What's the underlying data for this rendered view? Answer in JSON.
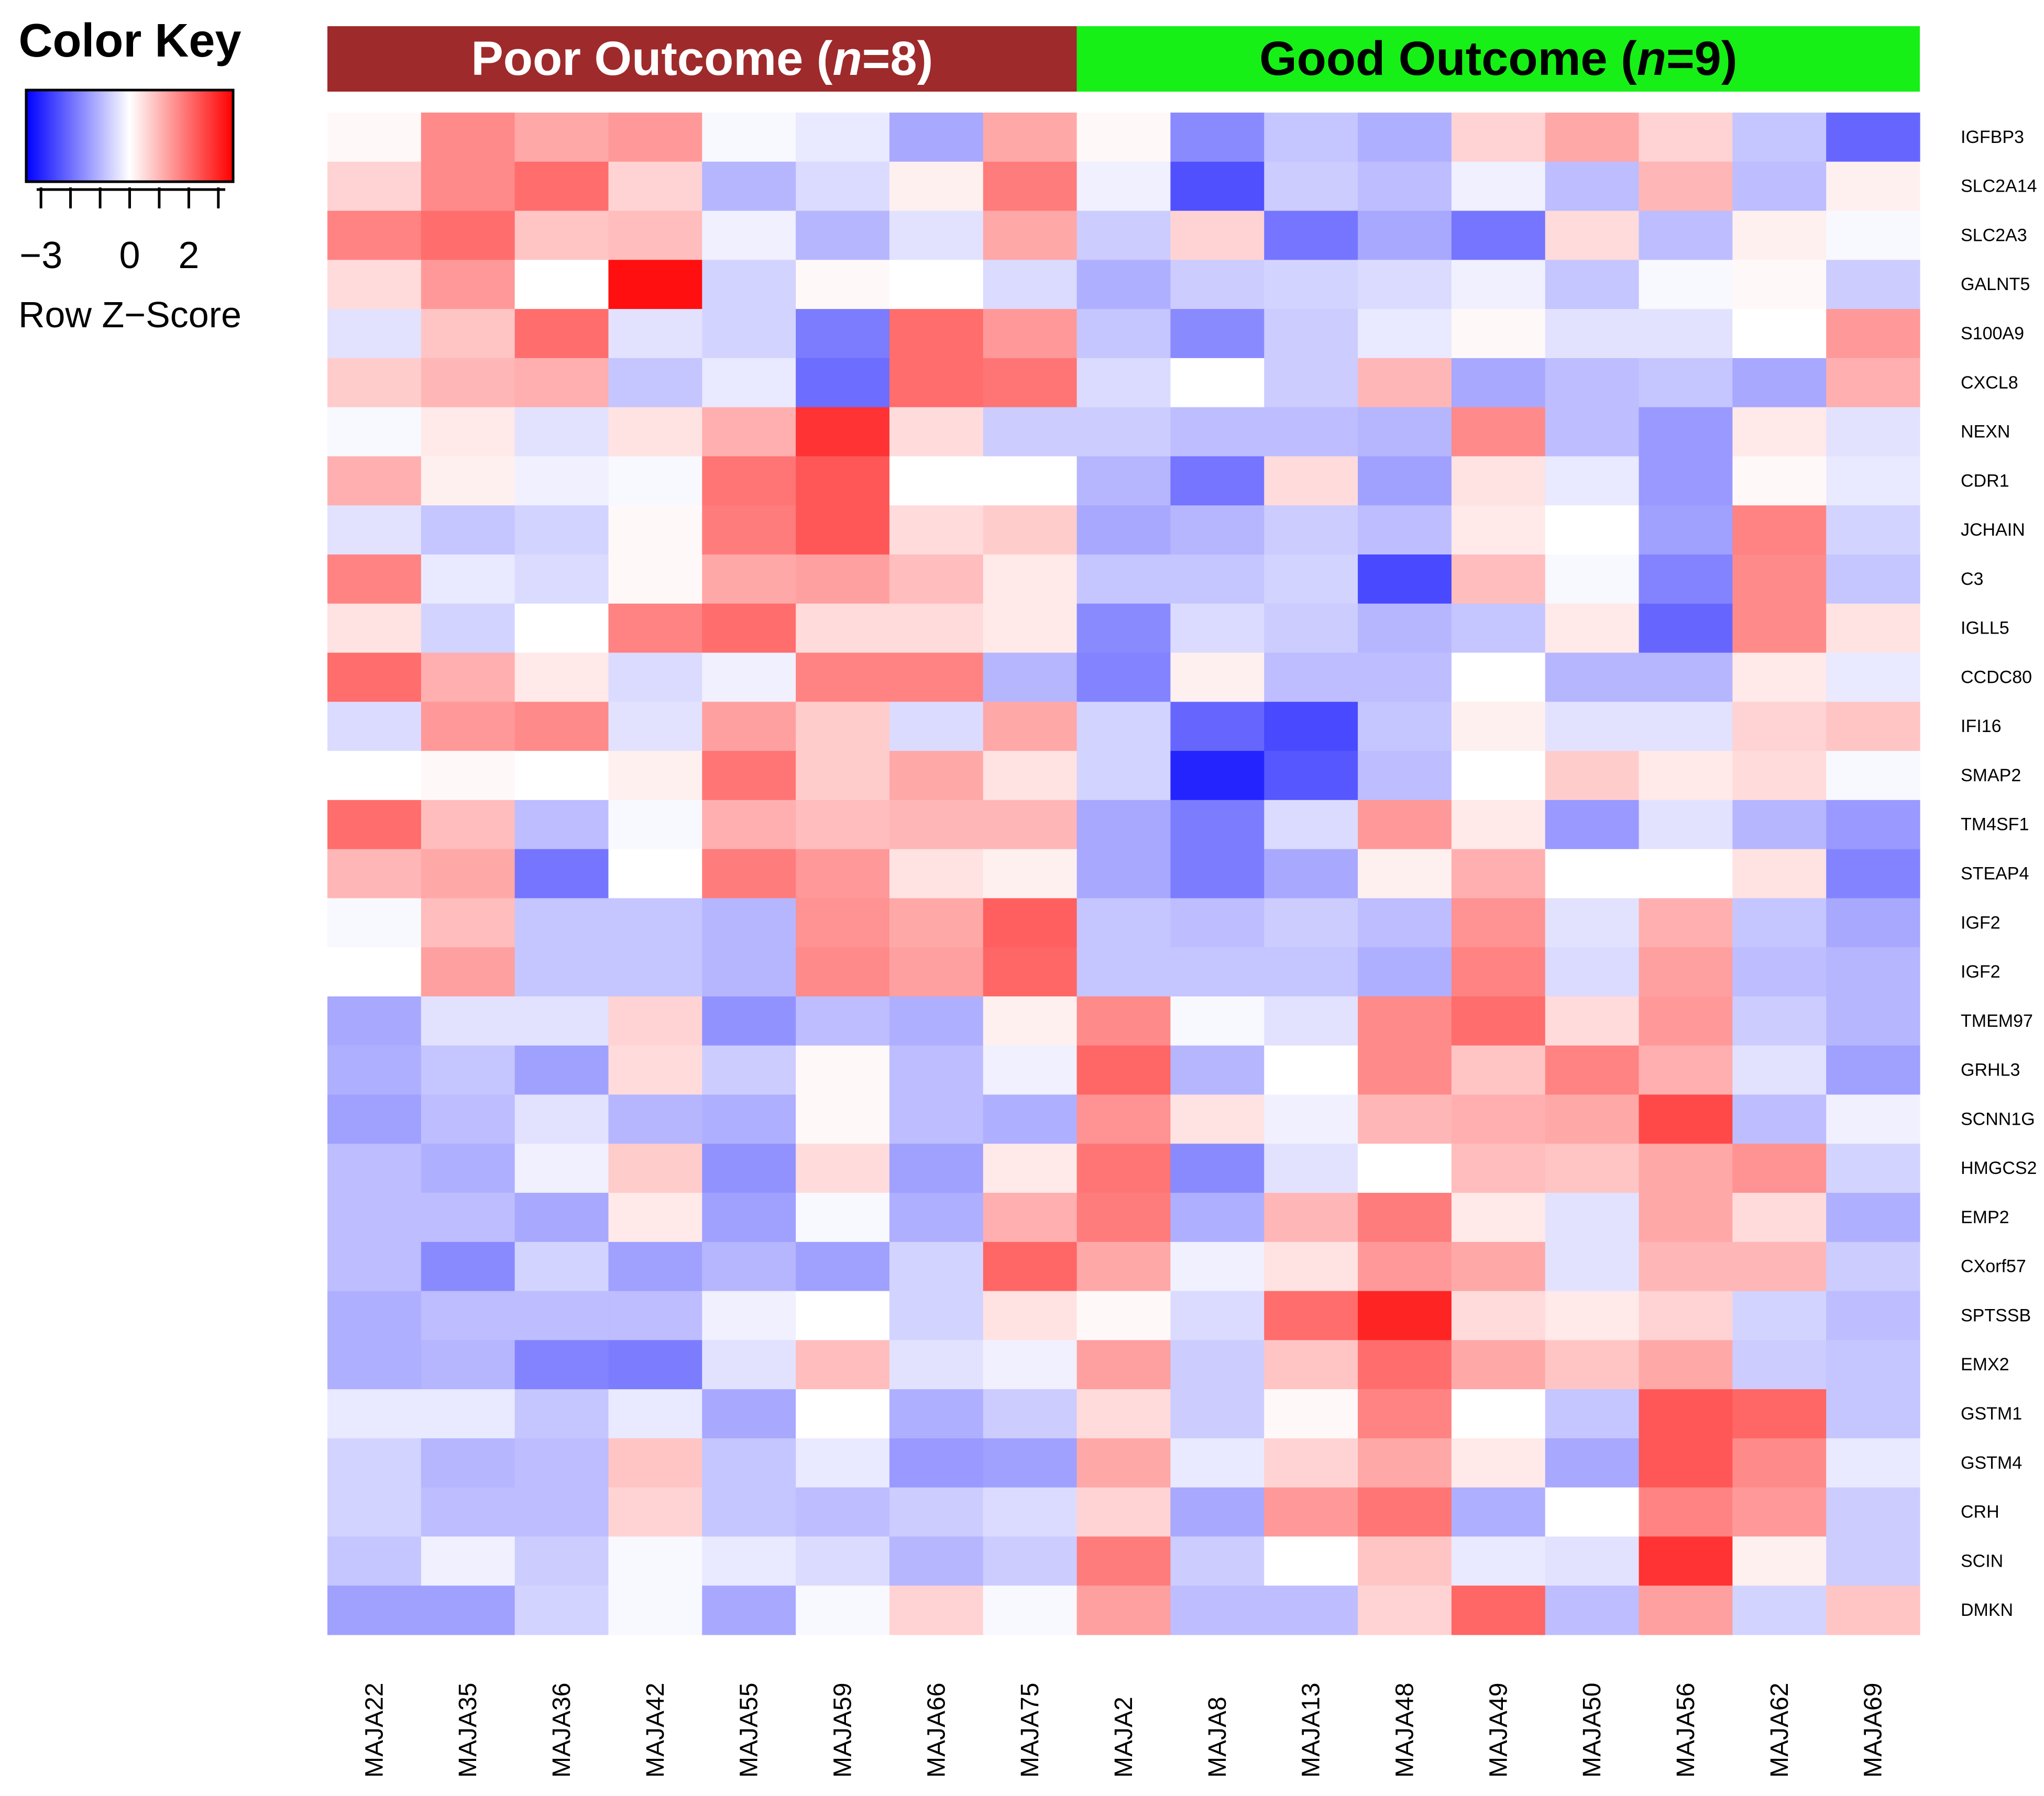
{
  "chart_data": {
    "type": "heatmap",
    "title": "",
    "xlabel": "",
    "ylabel": "",
    "color_key": {
      "title": "Color Key",
      "label": "Row Z−Score",
      "tick_labels": [
        "−3",
        "0",
        "2"
      ],
      "tick_values": [
        -3,
        0,
        2
      ],
      "range": [
        -3.5,
        3.5
      ],
      "low_color": "#0000ff",
      "mid_color": "#ffffff",
      "high_color": "#ff0000"
    },
    "groups": [
      {
        "label": "Poor Outcome",
        "n_label": "n",
        "count_label": "=8",
        "close_label": ")",
        "open_label": " (",
        "count": 8,
        "color": "#9e2a2b",
        "text_color": "#ffffff"
      },
      {
        "label": "Good Outcome",
        "n_label": "n",
        "count_label": "=9",
        "close_label": ")",
        "open_label": " (",
        "count": 9,
        "color": "#16f016",
        "text_color": "#000000"
      }
    ],
    "columns": [
      "MAJA22",
      "MAJA35",
      "MAJA36",
      "MAJA42",
      "MAJA55",
      "MAJA59",
      "MAJA66",
      "MAJA75",
      "MAJA2",
      "MAJA8",
      "MAJA13",
      "MAJA48",
      "MAJA49",
      "MAJA50",
      "MAJA56",
      "MAJA62",
      "MAJA69"
    ],
    "rows": [
      "IGFBP3",
      "SLC2A14",
      "SLC2A3",
      "GALNT5",
      "S100A9",
      "CXCL8",
      "NEXN",
      "CDR1",
      "JCHAIN",
      "C3",
      "IGLL5",
      "CCDC80",
      "IFI16",
      "SMAP2",
      "TM4SF1",
      "STEAP4",
      "IGF2",
      "IGF2",
      "TMEM97",
      "GRHL3",
      "SCNN1G",
      "HMGCS2",
      "EMP2",
      "CXorf57",
      "SPTSSB",
      "EMX2",
      "GSTM1",
      "GSTM4",
      "CRH",
      "SCIN",
      "DMKN"
    ],
    "values": [
      [
        0.1,
        1.6,
        1.2,
        1.4,
        -0.1,
        -0.3,
        -1.2,
        1.2,
        0.1,
        -1.6,
        -0.8,
        -1.1,
        0.6,
        1.2,
        0.6,
        -0.8,
        -2.1
      ],
      [
        0.6,
        1.6,
        2.0,
        0.6,
        -1.0,
        -0.5,
        0.2,
        1.8,
        -0.2,
        -2.4,
        -0.7,
        -0.9,
        -0.2,
        -0.9,
        1.0,
        -0.9,
        0.2
      ],
      [
        1.7,
        2.0,
        0.8,
        0.9,
        -0.2,
        -1.0,
        -0.4,
        1.2,
        -0.7,
        0.6,
        -1.9,
        -1.2,
        -1.9,
        0.5,
        -0.9,
        0.2,
        -0.1
      ],
      [
        0.5,
        1.4,
        0.0,
        3.3,
        -0.6,
        0.1,
        0.0,
        -0.5,
        -1.1,
        -0.7,
        -0.6,
        -0.5,
        -0.2,
        -0.8,
        -0.1,
        0.1,
        -0.7
      ],
      [
        -0.4,
        0.8,
        2.0,
        -0.4,
        -0.6,
        -1.8,
        2.0,
        1.4,
        -0.8,
        -1.6,
        -0.7,
        -0.3,
        0.1,
        -0.4,
        -0.4,
        0.0,
        1.4
      ],
      [
        0.7,
        1.0,
        1.1,
        -0.8,
        -0.3,
        -2.0,
        2.0,
        1.9,
        -0.5,
        0.0,
        -0.7,
        1.0,
        -1.2,
        -0.9,
        -0.8,
        -1.2,
        1.1
      ],
      [
        -0.1,
        0.3,
        -0.4,
        0.4,
        1.1,
        2.8,
        0.5,
        -0.7,
        -0.7,
        -0.9,
        -0.9,
        -1.0,
        1.6,
        -0.9,
        -1.4,
        0.3,
        -0.4
      ],
      [
        1.1,
        0.2,
        -0.2,
        -0.1,
        1.9,
        2.3,
        0.0,
        0.0,
        -1.0,
        -1.9,
        0.5,
        -1.3,
        0.4,
        -0.3,
        -1.4,
        0.1,
        -0.3
      ],
      [
        -0.4,
        -0.8,
        -0.6,
        0.1,
        1.8,
        2.3,
        0.5,
        0.7,
        -1.2,
        -1.0,
        -0.7,
        -0.9,
        0.3,
        0.0,
        -1.3,
        1.7,
        -0.6
      ],
      [
        1.7,
        -0.3,
        -0.5,
        0.1,
        1.2,
        1.3,
        0.9,
        0.3,
        -0.8,
        -0.8,
        -0.6,
        -2.5,
        0.9,
        -0.1,
        -1.7,
        1.6,
        -0.8
      ],
      [
        0.4,
        -0.6,
        0.0,
        1.7,
        2.0,
        0.5,
        0.5,
        0.3,
        -1.6,
        -0.5,
        -0.7,
        -1.0,
        -0.8,
        0.3,
        -2.1,
        1.6,
        0.4
      ],
      [
        2.0,
        1.1,
        0.3,
        -0.5,
        -0.2,
        1.7,
        1.7,
        -1.0,
        -1.7,
        0.2,
        -0.9,
        -0.9,
        0.0,
        -1.0,
        -1.0,
        0.3,
        -0.3
      ],
      [
        -0.5,
        1.4,
        1.6,
        -0.4,
        1.3,
        0.7,
        -0.5,
        1.2,
        -0.6,
        -2.1,
        -2.5,
        -0.8,
        0.2,
        -0.4,
        -0.4,
        0.6,
        0.8
      ],
      [
        0.0,
        0.1,
        0.0,
        0.2,
        1.9,
        0.7,
        1.2,
        0.4,
        -0.6,
        -3.0,
        -2.3,
        -0.9,
        0.0,
        0.7,
        0.3,
        0.5,
        -0.1
      ],
      [
        2.0,
        0.9,
        -0.9,
        -0.1,
        1.1,
        0.9,
        1.0,
        1.0,
        -1.2,
        -1.8,
        -0.5,
        1.4,
        0.3,
        -1.4,
        -0.4,
        -1.0,
        -1.4
      ],
      [
        1.0,
        1.2,
        -1.9,
        0.0,
        1.8,
        1.4,
        0.4,
        0.2,
        -1.2,
        -1.8,
        -1.2,
        0.2,
        1.1,
        0.0,
        0.0,
        0.4,
        -1.7
      ],
      [
        -0.1,
        0.9,
        -0.8,
        -0.8,
        -1.0,
        1.5,
        1.2,
        2.2,
        -0.8,
        -0.9,
        -0.7,
        -0.9,
        1.5,
        -0.4,
        1.1,
        -0.8,
        -1.2
      ],
      [
        0.0,
        1.3,
        -0.8,
        -0.8,
        -1.0,
        1.6,
        1.3,
        2.1,
        -0.8,
        -0.8,
        -0.8,
        -1.1,
        1.7,
        -0.5,
        1.3,
        -0.9,
        -1.0
      ],
      [
        -1.2,
        -0.4,
        -0.4,
        0.6,
        -1.5,
        -0.9,
        -1.1,
        0.2,
        1.6,
        -0.1,
        -0.4,
        1.6,
        2.0,
        0.5,
        1.4,
        -0.7,
        -1.0
      ],
      [
        -1.1,
        -0.8,
        -1.3,
        0.5,
        -0.7,
        0.1,
        -0.9,
        -0.2,
        2.1,
        -1.0,
        0.0,
        1.6,
        0.8,
        1.7,
        1.1,
        -0.4,
        -1.3
      ],
      [
        -1.3,
        -0.9,
        -0.4,
        -1.0,
        -1.1,
        0.1,
        -0.9,
        -1.1,
        1.5,
        0.4,
        -0.2,
        1.0,
        1.1,
        1.2,
        2.5,
        -0.9,
        -0.2
      ],
      [
        -0.9,
        -1.1,
        -0.2,
        0.7,
        -1.5,
        0.5,
        -1.3,
        0.3,
        1.9,
        -1.6,
        -0.4,
        0.0,
        0.9,
        0.8,
        1.2,
        1.5,
        -0.6
      ],
      [
        -0.9,
        -0.9,
        -1.2,
        0.3,
        -1.3,
        -0.1,
        -1.1,
        1.1,
        1.8,
        -1.1,
        1.0,
        1.8,
        0.3,
        -0.4,
        1.2,
        0.5,
        -1.1
      ],
      [
        -0.9,
        -1.6,
        -0.6,
        -1.3,
        -1.0,
        -1.3,
        -0.6,
        2.1,
        1.2,
        -0.2,
        0.4,
        1.4,
        1.2,
        -0.4,
        1.0,
        1.0,
        -0.7
      ],
      [
        -1.1,
        -0.9,
        -0.9,
        -0.9,
        -0.2,
        0.0,
        -0.6,
        0.4,
        0.1,
        -0.5,
        2.0,
        3.0,
        0.5,
        0.3,
        0.6,
        -0.6,
        -0.9
      ],
      [
        -1.1,
        -1.0,
        -1.7,
        -1.8,
        -0.4,
        0.9,
        -0.4,
        -0.2,
        1.3,
        -0.7,
        0.8,
        2.0,
        1.2,
        0.8,
        1.2,
        -0.7,
        -0.8
      ],
      [
        -0.3,
        -0.3,
        -0.8,
        -0.3,
        -1.2,
        0.0,
        -1.1,
        -0.7,
        0.5,
        -0.7,
        0.1,
        1.7,
        0.0,
        -0.8,
        2.3,
        2.1,
        -0.8
      ],
      [
        -0.6,
        -1.0,
        -0.9,
        0.8,
        -0.8,
        -0.3,
        -1.4,
        -1.3,
        1.2,
        -0.3,
        0.6,
        1.2,
        0.3,
        -1.2,
        2.3,
        1.6,
        -0.3
      ],
      [
        -0.6,
        -0.9,
        -0.9,
        0.6,
        -0.8,
        -0.9,
        -0.7,
        -0.5,
        0.6,
        -1.2,
        1.4,
        1.9,
        -1.1,
        0.0,
        1.7,
        1.4,
        -0.7
      ],
      [
        -0.8,
        -0.2,
        -0.7,
        -0.1,
        -0.3,
        -0.5,
        -1.0,
        -0.7,
        1.8,
        -0.7,
        0.0,
        0.8,
        -0.3,
        -0.4,
        2.8,
        0.2,
        -0.7
      ],
      [
        -1.3,
        -1.3,
        -0.6,
        -0.1,
        -1.2,
        -0.1,
        0.6,
        -0.1,
        1.3,
        -0.9,
        -0.9,
        0.6,
        2.1,
        -0.9,
        1.3,
        -0.6,
        0.8
      ]
    ]
  }
}
